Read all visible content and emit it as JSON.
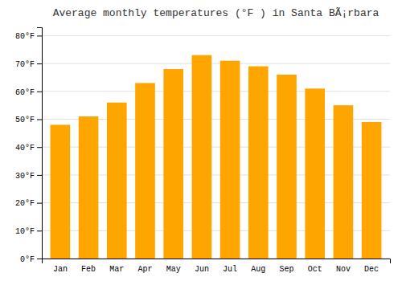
{
  "chart_data": {
    "type": "bar",
    "title": "Average monthly temperatures (°F ) in Santa BÃ¡rbara",
    "categories": [
      "Jan",
      "Feb",
      "Mar",
      "Apr",
      "May",
      "Jun",
      "Jul",
      "Aug",
      "Sep",
      "Oct",
      "Nov",
      "Dec"
    ],
    "values": [
      48,
      51,
      56,
      63,
      68,
      73,
      71,
      69,
      66,
      61,
      55,
      49
    ],
    "color": "#FFA500",
    "ylim": [
      0,
      83
    ],
    "yticks": [
      {
        "value": 0,
        "label": "0°F"
      },
      {
        "value": 10,
        "label": "10°F"
      },
      {
        "value": 20,
        "label": "20°F"
      },
      {
        "value": 30,
        "label": "30°F"
      },
      {
        "value": 40,
        "label": "40°F"
      },
      {
        "value": 50,
        "label": "50°F"
      },
      {
        "value": 60,
        "label": "60°F"
      },
      {
        "value": 70,
        "label": "70°F"
      },
      {
        "value": 80,
        "label": "80°F"
      }
    ],
    "grid": true
  }
}
